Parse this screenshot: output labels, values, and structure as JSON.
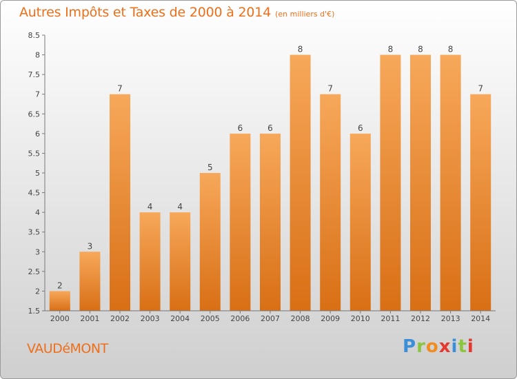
{
  "header": {
    "title": "Autres Impôts et Taxes de 2000 à 2014",
    "subtitle": "(en milliers d'€)"
  },
  "footer": {
    "commune": "VAUDéMONT",
    "brand": {
      "letters": [
        "P",
        "r",
        "o",
        "x",
        "i",
        "t",
        "i"
      ],
      "colors": [
        "#3a8fd8",
        "#8cc63f",
        "#f28c1e",
        "#e5392f",
        "#3a8fd8",
        "#8cc63f",
        "#e5392f"
      ]
    }
  },
  "chart_data": {
    "type": "bar",
    "title": "Autres Impôts et Taxes de 2000 à 2014",
    "subtitle": "(en milliers d'€)",
    "xlabel": "",
    "ylabel": "",
    "categories": [
      "2000",
      "2001",
      "2002",
      "2003",
      "2004",
      "2005",
      "2006",
      "2007",
      "2008",
      "2009",
      "2010",
      "2011",
      "2012",
      "2013",
      "2014"
    ],
    "values": [
      2,
      3,
      7,
      4,
      4,
      5,
      6,
      6,
      8,
      7,
      6,
      8,
      8,
      8,
      7
    ],
    "data_labels": [
      "2",
      "3",
      "7",
      "4",
      "4",
      "5",
      "6",
      "6",
      "8",
      "7",
      "6",
      "8",
      "8",
      "8",
      "7"
    ],
    "ylim": [
      1.5,
      8.5
    ],
    "yticks": [
      1.5,
      2,
      2.5,
      3,
      3.5,
      4,
      4.5,
      5,
      5.5,
      6,
      6.5,
      7,
      7.5,
      8,
      8.5
    ],
    "ytick_labels": [
      "1.5",
      "2",
      "2.5",
      "3",
      "3.5",
      "4",
      "4.5",
      "5",
      "5.5",
      "6",
      "6.5",
      "7",
      "7.5",
      "8",
      "8.5"
    ],
    "grid": false,
    "legend": "none",
    "bar_color_top": "#f7a85a",
    "bar_color_bottom": "#d86f15"
  }
}
